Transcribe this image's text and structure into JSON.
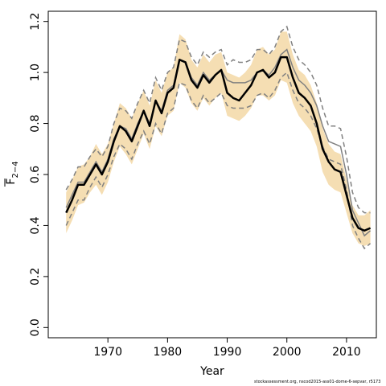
{
  "chart_data": {
    "type": "line",
    "title": "",
    "xlabel": "Year",
    "ylabel_main": "F",
    "ylabel_sub": "2−4",
    "xlim": [
      1960,
      2015
    ],
    "ylim": [
      -0.04,
      1.24
    ],
    "x_ticks": [
      1970,
      1980,
      1990,
      2000,
      2010
    ],
    "y_ticks": [
      0.0,
      0.2,
      0.4,
      0.6,
      0.8,
      1.0,
      1.2
    ],
    "y_tick_labels": [
      "0.0",
      "0.2",
      "0.4",
      "0.6",
      "0.8",
      "1.0",
      "1.2"
    ],
    "grid": false,
    "legend": "none",
    "colors": {
      "band": "#f5deb3",
      "estimate": "#000000",
      "comparison": "#808080",
      "ci_lines": "#808080"
    },
    "x": [
      1963,
      1964,
      1965,
      1966,
      1967,
      1968,
      1969,
      1970,
      1971,
      1972,
      1973,
      1974,
      1975,
      1976,
      1977,
      1978,
      1979,
      1980,
      1981,
      1982,
      1983,
      1984,
      1985,
      1986,
      1987,
      1988,
      1989,
      1990,
      1991,
      1992,
      1993,
      1994,
      1995,
      1996,
      1997,
      1998,
      1999,
      2000,
      2001,
      2002,
      2003,
      2004,
      2005,
      2006,
      2007,
      2008,
      2009,
      2010,
      2011,
      2012,
      2013,
      2014
    ],
    "series": [
      {
        "role": "estimate",
        "values": [
          0.45,
          0.5,
          0.56,
          0.56,
          0.6,
          0.64,
          0.6,
          0.65,
          0.73,
          0.79,
          0.77,
          0.73,
          0.79,
          0.85,
          0.79,
          0.89,
          0.84,
          0.92,
          0.94,
          1.05,
          1.04,
          0.97,
          0.94,
          0.99,
          0.96,
          0.99,
          1.01,
          0.92,
          0.9,
          0.89,
          0.92,
          0.95,
          1.0,
          1.01,
          0.98,
          1.0,
          1.06,
          1.06,
          0.98,
          0.92,
          0.9,
          0.87,
          0.8,
          0.7,
          0.65,
          0.62,
          0.61,
          0.52,
          0.43,
          0.39,
          0.38,
          0.39
        ]
      },
      {
        "role": "comparison",
        "values": [
          0.47,
          0.52,
          0.57,
          0.57,
          0.61,
          0.65,
          0.61,
          0.66,
          0.74,
          0.79,
          0.78,
          0.74,
          0.8,
          0.85,
          0.8,
          0.89,
          0.85,
          0.93,
          0.95,
          1.05,
          1.04,
          0.98,
          0.95,
          1.0,
          0.97,
          0.99,
          1.01,
          0.97,
          0.96,
          0.96,
          0.96,
          0.97,
          1.0,
          1.01,
          0.99,
          1.02,
          1.07,
          1.09,
          1.02,
          0.97,
          0.95,
          0.92,
          0.87,
          0.79,
          0.73,
          0.72,
          0.71,
          0.6,
          0.46,
          0.41,
          0.36,
          0.38
        ]
      },
      {
        "role": "ci_upper",
        "values": [
          0.54,
          0.58,
          0.63,
          0.63,
          0.67,
          0.7,
          0.67,
          0.71,
          0.8,
          0.86,
          0.85,
          0.82,
          0.88,
          0.93,
          0.88,
          0.98,
          0.93,
          1.0,
          1.02,
          1.13,
          1.12,
          1.06,
          1.03,
          1.08,
          1.06,
          1.08,
          1.09,
          1.03,
          1.05,
          1.04,
          1.04,
          1.05,
          1.09,
          1.09,
          1.07,
          1.1,
          1.16,
          1.18,
          1.1,
          1.05,
          1.03,
          1.0,
          0.95,
          0.86,
          0.79,
          0.79,
          0.78,
          0.67,
          0.53,
          0.47,
          0.45,
          0.45
        ]
      },
      {
        "role": "ci_lower",
        "values": [
          0.4,
          0.45,
          0.5,
          0.5,
          0.55,
          0.59,
          0.55,
          0.6,
          0.67,
          0.72,
          0.7,
          0.66,
          0.72,
          0.77,
          0.72,
          0.8,
          0.76,
          0.84,
          0.86,
          0.96,
          0.95,
          0.89,
          0.86,
          0.91,
          0.88,
          0.9,
          0.92,
          0.87,
          0.86,
          0.86,
          0.86,
          0.87,
          0.91,
          0.92,
          0.9,
          0.93,
          0.98,
          1.0,
          0.93,
          0.88,
          0.86,
          0.83,
          0.78,
          0.71,
          0.66,
          0.65,
          0.64,
          0.54,
          0.4,
          0.35,
          0.31,
          0.33
        ]
      },
      {
        "role": "band_upper",
        "values": [
          0.53,
          0.58,
          0.63,
          0.64,
          0.67,
          0.72,
          0.68,
          0.72,
          0.8,
          0.88,
          0.86,
          0.82,
          0.88,
          0.93,
          0.87,
          0.97,
          0.92,
          1.0,
          1.02,
          1.15,
          1.13,
          1.05,
          1.02,
          1.07,
          1.04,
          1.07,
          1.08,
          1.0,
          0.99,
          0.98,
          1.0,
          1.03,
          1.09,
          1.1,
          1.07,
          1.09,
          1.16,
          1.16,
          1.07,
          1.01,
          0.99,
          0.95,
          0.88,
          0.78,
          0.72,
          0.69,
          0.68,
          0.58,
          0.48,
          0.44,
          0.44,
          0.46
        ]
      },
      {
        "role": "band_lower",
        "values": [
          0.37,
          0.42,
          0.48,
          0.49,
          0.53,
          0.56,
          0.52,
          0.57,
          0.65,
          0.71,
          0.68,
          0.64,
          0.7,
          0.76,
          0.7,
          0.79,
          0.75,
          0.83,
          0.85,
          0.96,
          0.94,
          0.88,
          0.85,
          0.9,
          0.87,
          0.9,
          0.92,
          0.83,
          0.82,
          0.81,
          0.83,
          0.86,
          0.91,
          0.91,
          0.89,
          0.91,
          0.97,
          0.96,
          0.88,
          0.83,
          0.8,
          0.77,
          0.71,
          0.61,
          0.56,
          0.54,
          0.53,
          0.45,
          0.37,
          0.33,
          0.32,
          0.33
        ]
      }
    ]
  },
  "credit": "stockassessment.org, nscod2015-ass01-dome-6-sepvar, r5173"
}
